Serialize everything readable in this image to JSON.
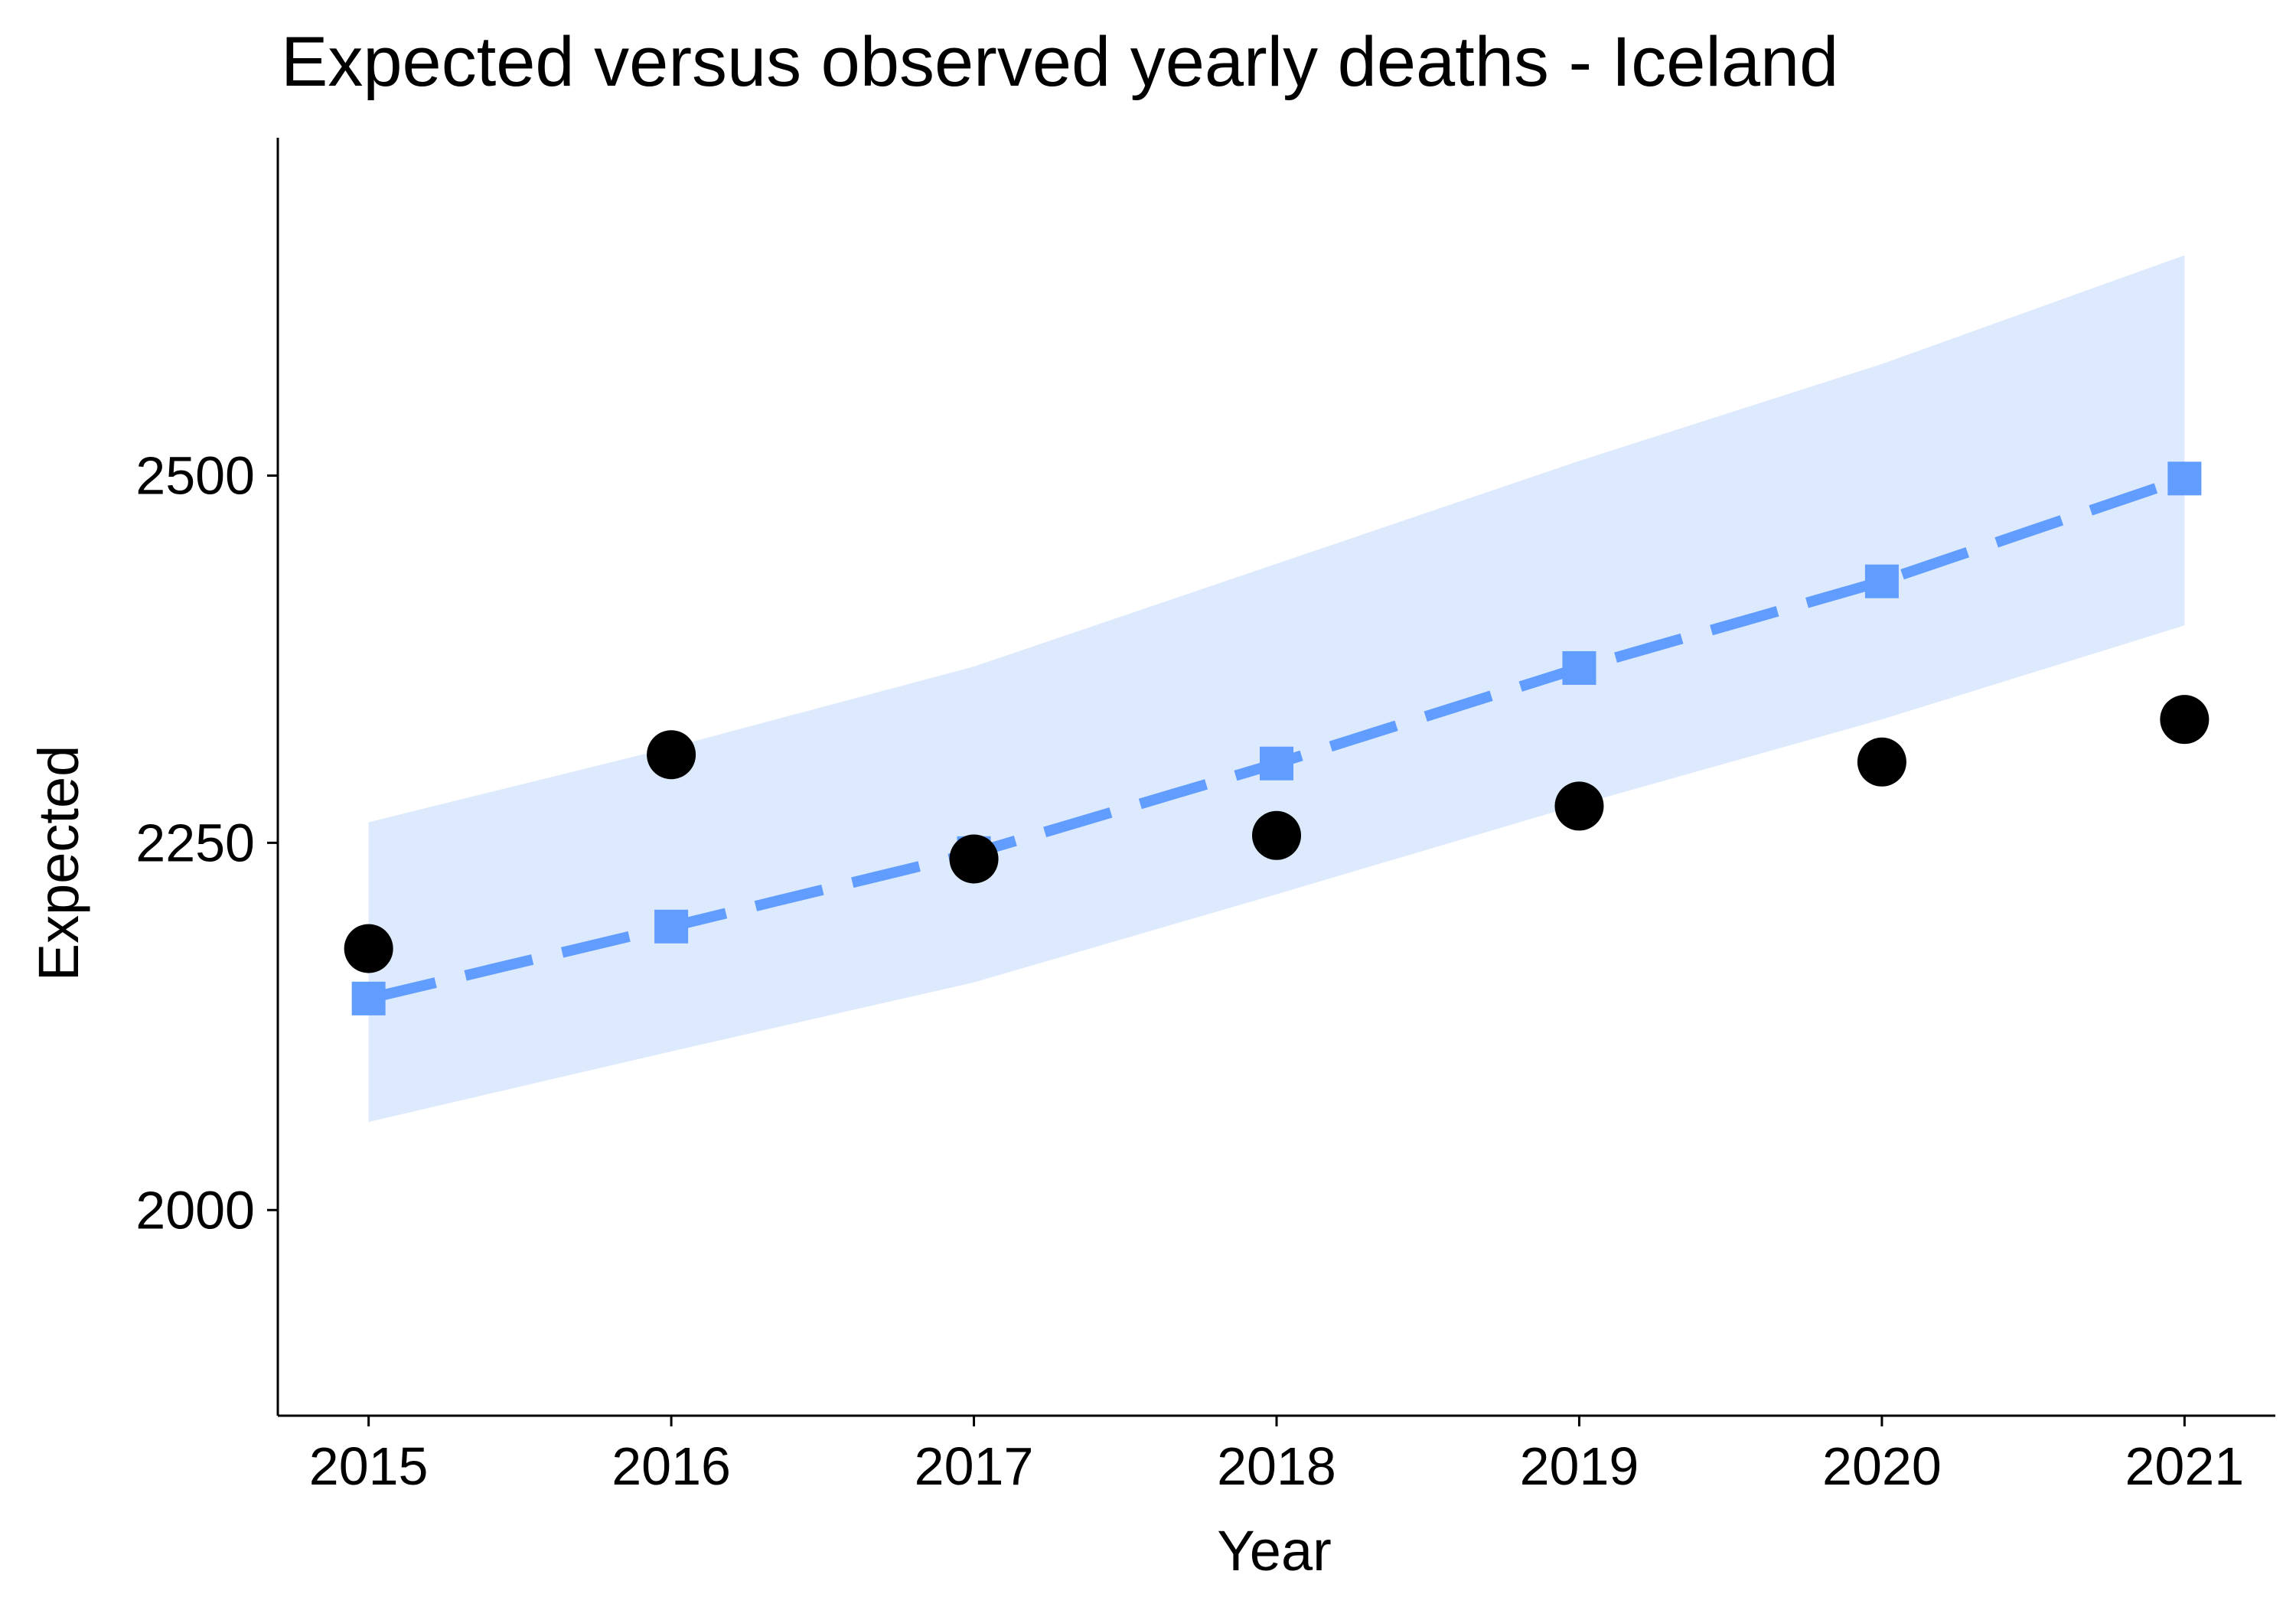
{
  "chart_data": {
    "type": "line",
    "title": "Expected versus observed yearly deaths - Iceland",
    "xlabel": "Year",
    "ylabel": "Expected",
    "x": [
      2015,
      2016,
      2017,
      2018,
      2019,
      2020,
      2021
    ],
    "x_tick_labels": [
      "2015",
      "2016",
      "2017",
      "2018",
      "2019",
      "2020",
      "2021"
    ],
    "y_ticks": [
      2000,
      2250,
      2500
    ],
    "y_tick_labels": [
      "2000",
      "2250",
      "2500"
    ],
    "xlim": [
      2014.7,
      2021.3
    ],
    "ylim": [
      1860,
      2730
    ],
    "grid": false,
    "series": [
      {
        "role": "expected",
        "style": "dashed-line-square-markers",
        "color": "#619CFF",
        "values": [
          2144,
          2193,
          2243,
          2304,
          2369,
          2428,
          2498
        ]
      },
      {
        "role": "observed",
        "style": "points",
        "color": "#000000",
        "values": [
          2178,
          2310,
          2239,
          2255,
          2275,
          2305,
          2334
        ]
      }
    ],
    "band": {
      "role": "prediction-interval",
      "color": "#DDEAFD",
      "lower": [
        2060,
        2108,
        2155,
        2215,
        2276,
        2334,
        2398
      ],
      "upper": [
        2264,
        2315,
        2370,
        2440,
        2510,
        2576,
        2650
      ]
    }
  }
}
